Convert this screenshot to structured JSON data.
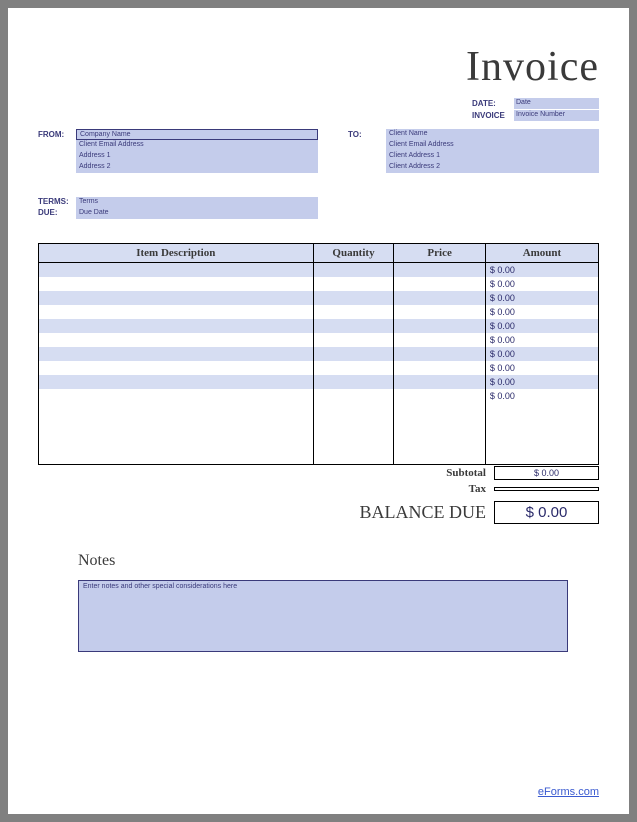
{
  "title": "Invoice",
  "date_block": {
    "date_label": "DATE:",
    "date_value": "Date",
    "invoice_label": "INVOICE",
    "invoice_value": "Invoice Number"
  },
  "from": {
    "label": "FROM:",
    "company": "Company Name",
    "email": "Client Email Address",
    "addr1": "Address 1",
    "addr2": "Address 2"
  },
  "to": {
    "label": "TO:",
    "name": "Client Name",
    "email": "Client Email Address",
    "addr1": "Client Address 1",
    "addr2": "Client Address 2"
  },
  "terms": {
    "terms_label": "TERMS:",
    "terms_value": "Terms",
    "due_label": "DUE:",
    "due_value": "Due Date"
  },
  "columns": {
    "desc": "Item Description",
    "qty": "Quantity",
    "price": "Price",
    "amount": "Amount"
  },
  "rows": [
    {
      "amount": "$ 0.00"
    },
    {
      "amount": "$ 0.00"
    },
    {
      "amount": "$ 0.00"
    },
    {
      "amount": "$ 0.00"
    },
    {
      "amount": "$ 0.00"
    },
    {
      "amount": "$ 0.00"
    },
    {
      "amount": "$ 0.00"
    },
    {
      "amount": "$ 0.00"
    },
    {
      "amount": "$ 0.00"
    },
    {
      "amount": "$ 0.00"
    }
  ],
  "totals": {
    "subtotal_label": "Subtotal",
    "subtotal_value": "$ 0.00",
    "tax_label": "Tax",
    "tax_value": "",
    "balance_label": "BALANCE DUE",
    "balance_value": "$ 0.00"
  },
  "notes": {
    "title": "Notes",
    "placeholder": "Enter notes and other special considerations here"
  },
  "footer_link": "eForms.com",
  "colors": {
    "field_bg": "#c4cceb",
    "header_bg": "#d6ddf2",
    "text_dark": "#3a3a7a",
    "border": "#000000",
    "page_bg": "#ffffff",
    "frame_bg": "#808080"
  }
}
